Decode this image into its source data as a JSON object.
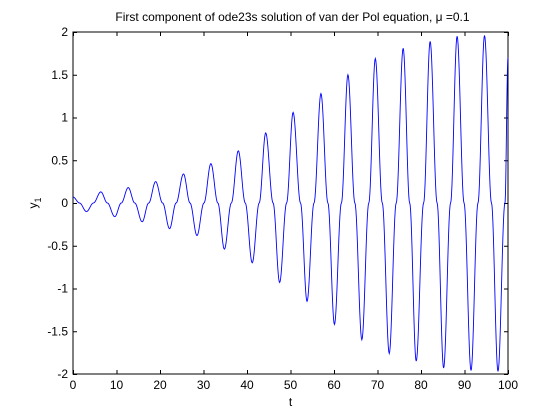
{
  "chart_data": {
    "type": "line",
    "title": "First component of ode23s solution of van der Pol equation, μ =0.1",
    "xlabel": "t",
    "ylabel": "y",
    "ylabel_subscript": "1",
    "xlim": [
      0,
      100
    ],
    "ylim": [
      -2,
      2
    ],
    "x_ticks": [
      0,
      10,
      20,
      30,
      40,
      50,
      60,
      70,
      80,
      90,
      100
    ],
    "y_ticks": [
      -2,
      -1.5,
      -1,
      -0.5,
      0,
      0.5,
      1,
      1.5,
      2
    ],
    "x_tick_labels": [
      "0",
      "10",
      "20",
      "30",
      "40",
      "50",
      "60",
      "70",
      "80",
      "90",
      "100"
    ],
    "y_tick_labels": [
      "-2",
      "-1.5",
      "-1",
      "-0.5",
      "0",
      "0.5",
      "1",
      "1.5",
      "2"
    ],
    "grid": false,
    "legend": "none",
    "series": [
      {
        "color": "#0000ff",
        "x": [
          0,
          1.5,
          3.1,
          4.7,
          6.4,
          7.9,
          9.6,
          11.1,
          12.7,
          14.2,
          15.9,
          17.4,
          19.0,
          20.6,
          22.2,
          23.7,
          25.4,
          26.9,
          28.5,
          30.1,
          31.7,
          33.3,
          34.8,
          36.4,
          38.0,
          39.6,
          41.2,
          42.8,
          44.3,
          46.0,
          47.5,
          49.1,
          50.6,
          52.3,
          53.8,
          55.4,
          57.0,
          58.6,
          60.1,
          61.7,
          63.2,
          64.8,
          66.4,
          68.0,
          69.5,
          71.1,
          72.7,
          74.3,
          75.9,
          77.4,
          78.9,
          80.6,
          82.1,
          83.7,
          85.2,
          86.8,
          88.3,
          89.9,
          91.5,
          93.1,
          94.6,
          96.2,
          97.7,
          99.3,
          100
        ],
        "y": [
          0.07,
          0,
          -0.1,
          0,
          0.13,
          0,
          -0.16,
          0,
          0.18,
          0,
          -0.22,
          0,
          0.25,
          0,
          -0.3,
          0,
          0.34,
          0,
          -0.38,
          0,
          0.46,
          0,
          -0.54,
          0,
          0.61,
          0,
          -0.7,
          0,
          0.82,
          0,
          -0.93,
          0,
          1.06,
          0,
          -1.15,
          0,
          1.28,
          0,
          -1.42,
          0,
          1.5,
          0,
          -1.6,
          0,
          1.69,
          0,
          -1.76,
          0,
          1.81,
          0,
          -1.85,
          0,
          1.89,
          0,
          -1.93,
          0,
          1.95,
          0,
          -1.96,
          0,
          1.96,
          0,
          -1.97,
          0,
          1.7
        ]
      }
    ]
  }
}
